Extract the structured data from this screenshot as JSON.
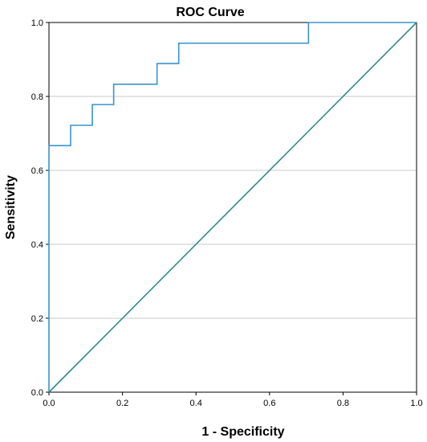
{
  "chart_data": {
    "type": "line",
    "title": "ROC Curve",
    "xlabel": "1 - Specificity",
    "ylabel": "Sensitivity",
    "xlim": [
      0.0,
      1.0
    ],
    "ylim": [
      0.0,
      1.0
    ],
    "xticks": [
      "0.0",
      "0.2",
      "0.4",
      "0.6",
      "0.8",
      "1.0"
    ],
    "yticks": [
      "0.0",
      "0.2",
      "0.4",
      "0.6",
      "0.8",
      "1.0"
    ],
    "grid": "horizontal",
    "series": [
      {
        "color": "#3a93cd",
        "x": [
          0.0,
          0.0,
          0.059,
          0.059,
          0.118,
          0.118,
          0.176,
          0.176,
          0.294,
          0.294,
          0.353,
          0.353,
          0.706,
          0.706,
          1.0
        ],
        "y": [
          0.0,
          0.667,
          0.667,
          0.722,
          0.722,
          0.778,
          0.778,
          0.833,
          0.833,
          0.889,
          0.889,
          0.944,
          0.944,
          1.0,
          1.0
        ]
      },
      {
        "color": "#2f8a8f",
        "x": [
          0.0,
          1.0
        ],
        "y": [
          0.0,
          1.0
        ]
      }
    ]
  }
}
